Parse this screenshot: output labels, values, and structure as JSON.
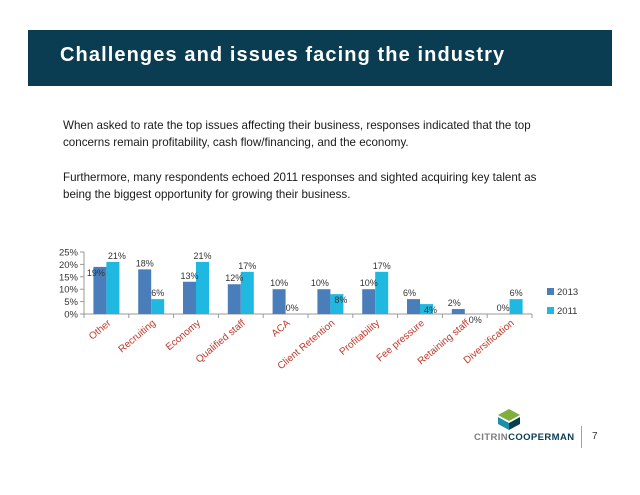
{
  "header": {
    "title": "Challenges and issues facing the industry"
  },
  "body": {
    "paragraph_1": "When asked to rate the top issues affecting their business, responses indicated that the top concerns remain profitability,  cash flow/financing, and the economy.",
    "paragraph_2": "Furthermore, many respondents echoed 2011 responses and sighted acquiring key talent as being the biggest opportunity for growing their business."
  },
  "chart_data": {
    "type": "bar",
    "categories": [
      "Other",
      "Recruiting",
      "Economy",
      "Qualified staff",
      "ACA",
      "Client Retention",
      "Profitability",
      "Fee pressure",
      "Retaining staff",
      "Diversification"
    ],
    "series": [
      {
        "name": "2013",
        "values": [
          19,
          18,
          13,
          12,
          10,
          10,
          10,
          6,
          2,
          0
        ],
        "labels": [
          "19%",
          "18%",
          "13%",
          "12%",
          "10%",
          "10%",
          "10%",
          "6%",
          "2%",
          "0%"
        ]
      },
      {
        "name": "2011",
        "values": [
          21,
          6,
          21,
          17,
          0,
          8,
          17,
          4,
          0,
          6
        ],
        "labels": [
          "21%",
          "6%",
          "21%",
          "17%",
          "0%",
          "8%",
          "17%",
          "4%",
          "0%",
          "6%"
        ]
      }
    ],
    "ylim": [
      0,
      25
    ],
    "yticks": [
      0,
      5,
      10,
      15,
      20,
      25
    ],
    "ytick_labels": [
      "0%",
      "5%",
      "10%",
      "15%",
      "20%",
      "25%"
    ],
    "xlabel": "",
    "ylabel": "",
    "grid": false,
    "legend_position": "right",
    "colors": {
      "2013": "#4a7ebb",
      "2011": "#1fb8e0"
    }
  },
  "footer": {
    "brand_part_1": "CITRIN",
    "brand_part_2": "COOPERMAN",
    "page_number": "7",
    "logo_colors": [
      "#7fb03c",
      "#1e8fa8",
      "#0a3d52"
    ]
  }
}
